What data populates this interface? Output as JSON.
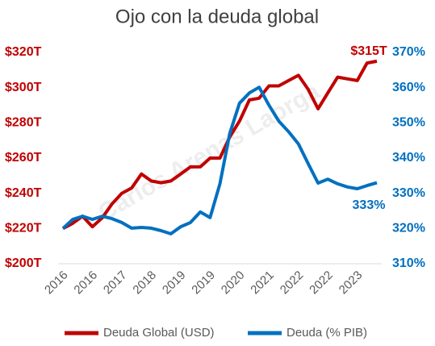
{
  "chart_data": {
    "type": "line",
    "title": "Ojo con la deuda global",
    "watermark": "Carlos Arenas Laorga",
    "categories": [
      "2016",
      null,
      null,
      "2016",
      null,
      null,
      "2017",
      null,
      null,
      "2018",
      null,
      null,
      "2019",
      null,
      null,
      "2019",
      null,
      null,
      "2020",
      null,
      null,
      "2021",
      null,
      null,
      "2022",
      null,
      null,
      "2022",
      null,
      null,
      "2023",
      null,
      null
    ],
    "series": [
      {
        "name": "Deuda Global (USD)",
        "color": "#c00000",
        "axis": "y",
        "values": [
          220,
          223,
          227,
          221,
          226,
          234,
          240,
          243,
          251,
          247,
          246,
          247,
          251,
          255,
          255,
          260,
          260,
          272,
          281,
          293,
          294,
          301,
          301,
          304,
          307,
          299,
          288,
          297,
          306,
          305,
          304,
          314,
          315
        ]
      },
      {
        "name": "Deuda (% PIB)",
        "color": "#0070c0",
        "axis": "y2",
        "values": [
          320,
          322.6,
          323.5,
          322.6,
          323.5,
          322.8,
          321.7,
          320.1,
          320.3,
          320.1,
          319.4,
          318.5,
          320.5,
          321.7,
          324.7,
          323.1,
          332.7,
          347,
          355.6,
          358.5,
          360.1,
          355,
          350.5,
          347.5,
          344,
          338.4,
          332.9,
          334,
          332.7,
          331.8,
          331.3,
          332.2,
          333
        ]
      }
    ],
    "ylim": [
      200,
      320
    ],
    "yticks": [
      {
        "value": 200,
        "label": "$200T"
      },
      {
        "value": 220,
        "label": "$220T"
      },
      {
        "value": 240,
        "label": "$240T"
      },
      {
        "value": 260,
        "label": "$260T"
      },
      {
        "value": 280,
        "label": "$280T"
      },
      {
        "value": 300,
        "label": "$300T"
      },
      {
        "value": 320,
        "label": "$320T"
      }
    ],
    "y2lim": [
      310,
      370
    ],
    "y2ticks": [
      {
        "value": 310,
        "label": "310%"
      },
      {
        "value": 320,
        "label": "320%"
      },
      {
        "value": 330,
        "label": "330%"
      },
      {
        "value": 340,
        "label": "340%"
      },
      {
        "value": 350,
        "label": "350%"
      },
      {
        "value": 360,
        "label": "360%"
      },
      {
        "value": 370,
        "label": "370%"
      }
    ],
    "annotations": [
      {
        "text": "$315T",
        "series": 0
      },
      {
        "text": "333%",
        "series": 1
      }
    ],
    "grid": false,
    "legend": "bottom"
  }
}
